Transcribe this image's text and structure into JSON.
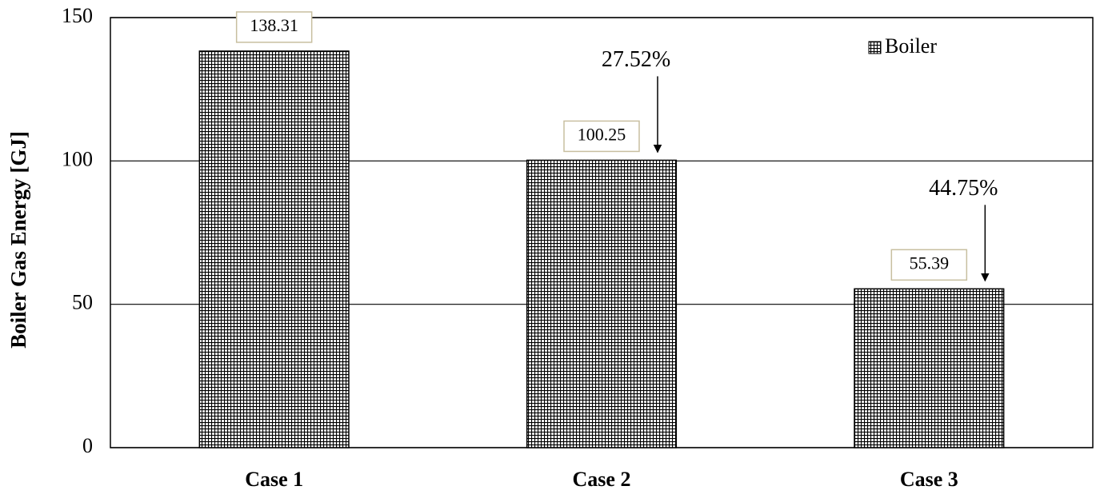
{
  "chart_data": {
    "type": "bar",
    "y_label": "Boiler Gas Energy [GJ]",
    "categories": [
      "Case 1",
      "Case 2",
      "Case 3"
    ],
    "series": [
      {
        "name": "Boiler",
        "color": "#000000",
        "values": [
          138.31,
          100.25,
          55.39
        ]
      }
    ],
    "annotations": [
      "27.52%",
      "44.75%"
    ],
    "ylim": [
      0,
      150
    ],
    "yticks": [
      0,
      50,
      100,
      150
    ],
    "grid": true,
    "legend": "upper right"
  }
}
